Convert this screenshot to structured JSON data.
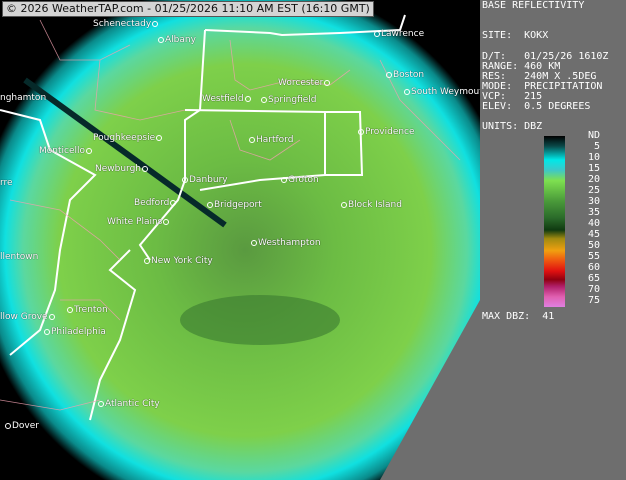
{
  "banner": "© 2026 WeatherTAP.com - 01/25/2026 11:10 AM EST (16:10 GMT)",
  "panel": {
    "title": "BASE REFLECTIVITY",
    "site": "SITE:  KOKX",
    "dt": "D/T:   01/25/26 1610Z",
    "range": "RANGE: 460 KM",
    "res": "RES:   240M X .5DEG",
    "mode": "MODE:  PRECIPITATION",
    "vcp": "VCP:   215",
    "elev": "ELEV:  0.5 DEGREES",
    "units": "UNITS: DBZ",
    "scale": [
      "ND",
      "5",
      "10",
      "15",
      "20",
      "25",
      "30",
      "35",
      "40",
      "45",
      "50",
      "55",
      "60",
      "65",
      "70",
      "75"
    ],
    "max": "MAX DBZ:  41"
  },
  "colors": {
    "cyan": "#00e8e8",
    "green": "#7ed04a",
    "dark_green": "#2a6a2a",
    "state_line": "#ffffff",
    "county_line": "#f0a0b0",
    "panel_bg": "#6e6e6e"
  },
  "cities": [
    {
      "name": "Schenectady",
      "side": "left"
    },
    {
      "name": "Albany",
      "side": "right"
    },
    {
      "name": "Lawrence",
      "side": "right"
    },
    {
      "name": "Boston",
      "side": "right"
    },
    {
      "name": "South Weymouth",
      "side": "right"
    },
    {
      "name": "Worcester",
      "side": "left"
    },
    {
      "name": "Westfield",
      "side": "left"
    },
    {
      "name": "Springfield",
      "side": "right"
    },
    {
      "name": "nghamton",
      "side": "none"
    },
    {
      "name": "Poughkeepsie",
      "side": "left"
    },
    {
      "name": "Hartford",
      "side": "right"
    },
    {
      "name": "Providence",
      "side": "right"
    },
    {
      "name": "Monticello",
      "side": "left"
    },
    {
      "name": "Newburgh",
      "side": "left"
    },
    {
      "name": "Danbury",
      "side": "right"
    },
    {
      "name": "Groton",
      "side": "right"
    },
    {
      "name": "rre",
      "side": "none"
    },
    {
      "name": "Bedford",
      "side": "left"
    },
    {
      "name": "Bridgeport",
      "side": "right"
    },
    {
      "name": "Block Island",
      "side": "right"
    },
    {
      "name": "White Plains",
      "side": "left"
    },
    {
      "name": "Westhampton",
      "side": "right"
    },
    {
      "name": "llentown",
      "side": "none"
    },
    {
      "name": "New York City",
      "side": "right"
    },
    {
      "name": "Trenton",
      "side": "right"
    },
    {
      "name": "llow Grove",
      "side": "left"
    },
    {
      "name": "Philadelphia",
      "side": "right"
    },
    {
      "name": "Atlantic City",
      "side": "right"
    },
    {
      "name": "Dover",
      "side": "right"
    }
  ]
}
